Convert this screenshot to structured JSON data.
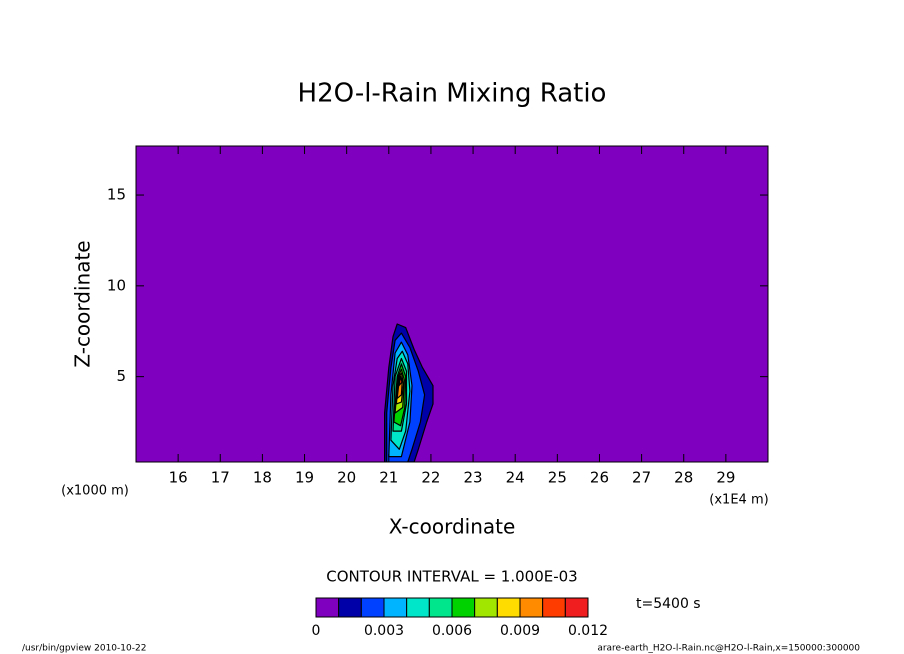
{
  "chart_data": {
    "type": "contour",
    "title": "H2O-l-Rain Mixing Ratio",
    "x_label": "X-coordinate",
    "y_label": "Z-coordinate",
    "x_unit": "(x1E4 m)",
    "y_unit": "(x1000 m)",
    "xlim": [
      15,
      30
    ],
    "ylim": [
      0.3,
      17.7
    ],
    "xticks": [
      16,
      17,
      18,
      19,
      20,
      21,
      22,
      23,
      24,
      25,
      26,
      27,
      28,
      29
    ],
    "yticks": [
      5,
      10,
      15
    ],
    "background_color": "#7f00bf",
    "contour_interval_text": "CONTOUR INTERVAL = 1.000E-03",
    "time_text": "t=5400 s",
    "colorbar": {
      "levels": [
        0,
        0.001,
        0.002,
        0.003,
        0.004,
        0.005,
        0.006,
        0.007,
        0.008,
        0.009,
        0.01,
        0.011,
        0.012
      ],
      "colors": [
        "#7f00bf",
        "#0000a8",
        "#0040ff",
        "#00b4ff",
        "#00e6c8",
        "#00e68c",
        "#00d200",
        "#a0e600",
        "#ffdc00",
        "#ff8c00",
        "#ff3c00",
        "#f01e1e",
        "#ff9ea0"
      ],
      "ticks": [
        0,
        0.003,
        0.006,
        0.009,
        0.012
      ]
    },
    "contours": [
      {
        "level": 0.001,
        "points": [
          [
            20.9,
            0.3
          ],
          [
            20.9,
            3.0
          ],
          [
            21.0,
            5.5
          ],
          [
            21.1,
            7.2
          ],
          [
            21.2,
            7.9
          ],
          [
            21.4,
            7.7
          ],
          [
            21.6,
            6.5
          ],
          [
            21.8,
            5.5
          ],
          [
            22.05,
            4.5
          ],
          [
            22.05,
            3.5
          ],
          [
            21.9,
            2.5
          ],
          [
            21.7,
            1.0
          ],
          [
            21.6,
            0.3
          ]
        ]
      },
      {
        "level": 0.002,
        "points": [
          [
            20.95,
            0.3
          ],
          [
            20.95,
            3.0
          ],
          [
            21.05,
            5.5
          ],
          [
            21.15,
            7.0
          ],
          [
            21.3,
            7.4
          ],
          [
            21.5,
            6.6
          ],
          [
            21.7,
            5.3
          ],
          [
            21.85,
            4.0
          ],
          [
            21.75,
            2.5
          ],
          [
            21.55,
            1.0
          ],
          [
            21.45,
            0.3
          ]
        ]
      },
      {
        "level": 0.003,
        "points": [
          [
            21.0,
            0.6
          ],
          [
            21.05,
            4.0
          ],
          [
            21.15,
            6.3
          ],
          [
            21.3,
            6.9
          ],
          [
            21.45,
            6.2
          ],
          [
            21.55,
            4.5
          ],
          [
            21.5,
            2.5
          ],
          [
            21.3,
            0.6
          ]
        ]
      },
      {
        "level": 0.004,
        "points": [
          [
            21.05,
            1.5
          ],
          [
            21.1,
            4.5
          ],
          [
            21.2,
            6.0
          ],
          [
            21.32,
            6.4
          ],
          [
            21.45,
            5.7
          ],
          [
            21.5,
            4.2
          ],
          [
            21.4,
            2.0
          ],
          [
            21.25,
            1.0
          ]
        ]
      },
      {
        "level": 0.005,
        "points": [
          [
            21.1,
            2.0
          ],
          [
            21.15,
            5.0
          ],
          [
            21.3,
            6.0
          ],
          [
            21.42,
            5.3
          ],
          [
            21.42,
            3.5
          ],
          [
            21.3,
            2.0
          ]
        ]
      },
      {
        "level": 0.006,
        "points": [
          [
            21.12,
            2.5
          ],
          [
            21.2,
            5.0
          ],
          [
            21.3,
            5.7
          ],
          [
            21.4,
            5.0
          ],
          [
            21.38,
            3.3
          ],
          [
            21.28,
            2.3
          ]
        ]
      },
      {
        "level": 0.007,
        "points": [
          [
            21.15,
            3.0
          ],
          [
            21.22,
            5.0
          ],
          [
            21.3,
            5.4
          ],
          [
            21.37,
            4.8
          ],
          [
            21.33,
            3.3
          ]
        ]
      },
      {
        "level": 0.008,
        "points": [
          [
            21.18,
            3.5
          ],
          [
            21.24,
            5.0
          ],
          [
            21.3,
            5.2
          ],
          [
            21.35,
            4.6
          ],
          [
            21.3,
            3.6
          ]
        ]
      },
      {
        "level": 0.009,
        "points": [
          [
            21.2,
            3.8
          ],
          [
            21.26,
            5.1
          ],
          [
            21.32,
            4.8
          ],
          [
            21.3,
            4.0
          ]
        ]
      },
      {
        "level": 0.01,
        "points": [
          [
            21.24,
            4.5
          ],
          [
            21.28,
            5.0
          ],
          [
            21.31,
            4.7
          ]
        ]
      }
    ],
    "footer_left": "/usr/bin/gpview  2010-10-22",
    "footer_right": "arare-earth_H2O-l-Rain.nc@H2O-l-Rain,x=150000:300000"
  }
}
